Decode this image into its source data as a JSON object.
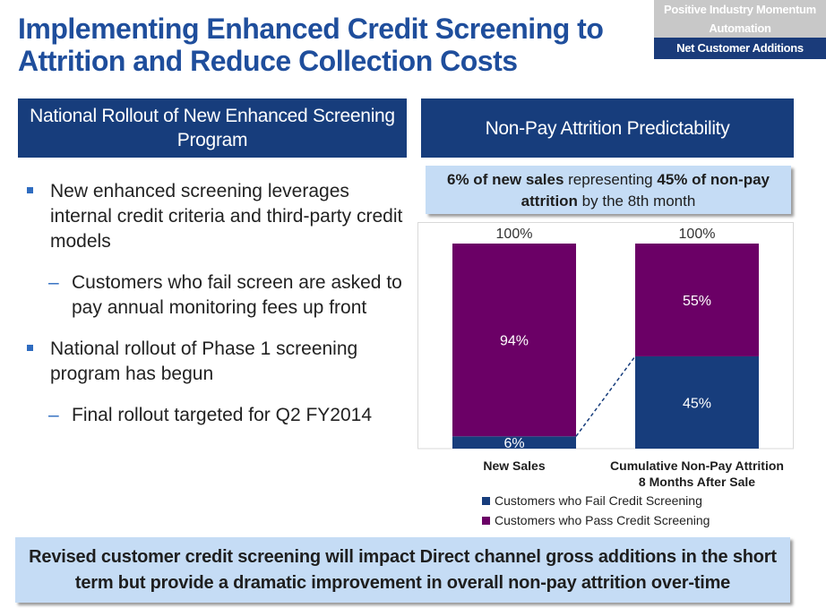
{
  "title": "Implementing Enhanced Credit Screening to Attrition and Reduce Collection Costs",
  "tabs": [
    {
      "label": "Positive Industry Momentum",
      "active": false
    },
    {
      "label": "Automation",
      "active": false
    },
    {
      "label": "Net Customer Additions",
      "active": true
    }
  ],
  "left_header": "National Rollout of New  Enhanced Screening Program",
  "right_header": "Non-Pay Attrition Predictability",
  "bullets": [
    {
      "text": "New enhanced screening leverages internal credit criteria and third-party credit models",
      "sub": "Customers who fail screen are asked to pay annual monitoring fees up front"
    },
    {
      "text": "National rollout of Phase 1 screening program has begun",
      "sub": "Final rollout targeted for Q2 FY2014"
    }
  ],
  "sub_marker": "–",
  "callout": {
    "p1_bold": "6% of new sales",
    "p2": " representing ",
    "p3_bold": "45% of non-pay attrition",
    "p4": " by the 8th month"
  },
  "footer": "Revised customer credit screening will impact Direct channel gross additions in the short term but provide a dramatic improvement in overall non-pay attrition over-time",
  "colors": {
    "fail": "#173d7c",
    "pass": "#6b0066",
    "header": "#173d7c",
    "callout": "#c5dcf5"
  },
  "chart_data": {
    "type": "bar",
    "stacked": true,
    "categories": [
      "New Sales",
      "Cumulative Non-Pay Attrition 8 Months After Sale"
    ],
    "category_lines": [
      [
        "New Sales"
      ],
      [
        "Cumulative Non-Pay Attrition",
        "8 Months After Sale"
      ]
    ],
    "series": [
      {
        "name": "Customers who Fail Credit Screening",
        "values": [
          6,
          45
        ],
        "labels": [
          "6%",
          "45%"
        ]
      },
      {
        "name": "Customers who Pass Credit Screening",
        "values": [
          94,
          55
        ],
        "labels": [
          "94%",
          "55%"
        ]
      }
    ],
    "totals": [
      "100%",
      "100%"
    ],
    "ylim": [
      0,
      100
    ],
    "grid": false,
    "legend": "bottom",
    "connector": "dashed line from top of New Sales fail segment to top of attrition fail segment"
  }
}
